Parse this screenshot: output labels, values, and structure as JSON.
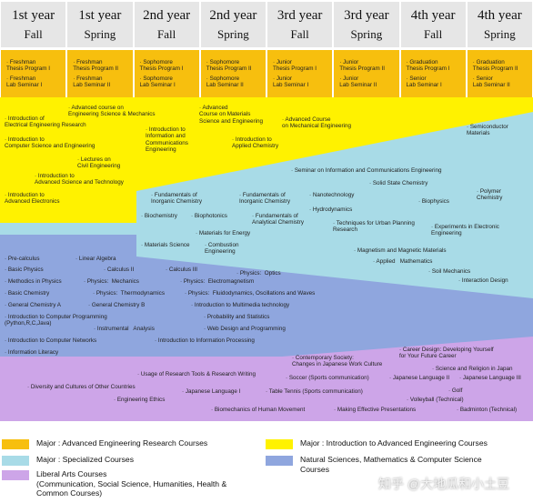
{
  "headers": [
    {
      "year": "1st year",
      "term": "Fall"
    },
    {
      "year": "1st year",
      "term": "Spring"
    },
    {
      "year": "2nd year",
      "term": "Fall"
    },
    {
      "year": "2nd year",
      "term": "Spring"
    },
    {
      "year": "3rd year",
      "term": "Fall"
    },
    {
      "year": "3rd year",
      "term": "Spring"
    },
    {
      "year": "4th year",
      "term": "Fall"
    },
    {
      "year": "4th year",
      "term": "Spring"
    }
  ],
  "thesis_cells": [
    [
      "· Freshman\nThesis Program I",
      "· Freshman\nLab Seminar I"
    ],
    [
      "· Freshman\nThesis Program II",
      "· Freshman\nLab Seminar II"
    ],
    [
      "· Sophomore\nThesis Program I",
      "· Sophomore\nLab Seminar I"
    ],
    [
      "· Sophomore\nThesis Program II",
      "· Sophomore\nLab Seminar II"
    ],
    [
      "· Junior\nThesis Program I",
      "· Junior\nLab Seminar I"
    ],
    [
      "· Junior\nThesis Program II",
      "· Junior\nLab Seminar II"
    ],
    [
      "· Graduation\nThesis Program I",
      "· Senior\nLab Seminar I"
    ],
    [
      "· Graduation\nThesis Program II",
      "· Senior\nLab Seminar II"
    ]
  ],
  "intro_major_courses": [
    "· Introduction of\nElectrical Engineering Research",
    "· Advanced course on\nEngineering Science & Mechanics",
    "· Introduction to\nComputer Science and Engineering",
    "· Introduction to\nInformation and\nCommunications\nEngineering",
    "· Advanced\nCourse on Materials\nScience and Engineering",
    "· Advanced Course\non Mechanical Engineering",
    "· Introduction to\nApplied Chemistry",
    "· Lectures on\nCivil Engineering",
    "· Introduction to\nAdvanced Science and Technology",
    "· Introduction to\nAdvanced Electronics"
  ],
  "specialized_courses": [
    "· Semiconductor\nMaterials",
    "· Seminar on Information and Communications Engineering",
    "· Solid State Chemistry",
    "· Fundamentals of\nInorganic Chemistry",
    "· Fundamentals of\nInorganic Chemistry",
    "· Nanotechnology",
    "· Polymer\nChemistry",
    "· Biophysics",
    "· Hydrodynamics",
    "· Biochemistry",
    "· Biophotonics",
    "· Fundamentals of\nAnalytical Chemistry",
    "· Techniques for Urban Planning\nResearch",
    "· Experiments in Electronic\nEngineering",
    "· Materials for Energy",
    "· Materials Science",
    "· Combustion\nEngineering",
    "· Magnetism and Magnetic Materials",
    "· Applied   Mathematics",
    "· Soil Mechanics",
    "· Interaction Design"
  ],
  "science_courses": [
    "· Pre-calculus",
    "· Linear Algebra",
    "· Basic Physics",
    "· Calculus II",
    "· Calculus III",
    "· Physics:  Optics",
    "· Methodics in Physics",
    "· Physics:  Mechanics",
    "· Physics:  Electromagnetism",
    "· Basic Chemistry",
    "· Physics:  Thermodynamics",
    "· Physics:  Fluidodynamics, Oscillations and Waves",
    "· General Chemistry A",
    "· General Chemistry B",
    "· Introduction to Multimedia technology",
    "· Introduction to Computer Programming\n(Python,R,C,Java)",
    "· Probability and Statistics",
    "· Instrumental   Analysis",
    "· Web Design and Programming",
    "· Introduction to Computer Networks",
    "· Introduction to Information Processing",
    "· Information Literacy"
  ],
  "liberal_courses": [
    "· Contemporary Society:\nChanges in Japanese Work Culture",
    "· Career Design: Developing Yourself\nfor Your Future Career",
    "· Science and Religion in Japan",
    "· Usage of Research Tools & Research Writing",
    "· Soccer (Sports communication)",
    "· Japanese Language II",
    "· Japanese Language III",
    "· Diversity and Cultures of Other Countries",
    "· Japanese Language I",
    "· Table Tennis (Sports communication)",
    "· Golf",
    "· Engineering Ethics",
    "· Volleyball (Technical)",
    "· Biomechanics of Human Movement",
    "· Making Effective Presentations",
    "· Badminton (Technical)"
  ],
  "legend": [
    {
      "label": "Major : Advanced Engineering Research Courses",
      "color": "#f7bf0e"
    },
    {
      "label": "Major : Introduction to Advanced Engineering Courses",
      "color": "#fff200"
    },
    {
      "label": "Major : Specialized Courses",
      "color": "#a8dbe7"
    },
    {
      "label": "Natural Sciences, Mathematics & Computer Science\nCourses",
      "color": "#8fa6de"
    },
    {
      "label": "Liberal Arts Courses\n(Communication, Social Science, Humanities, Health &\nCommon Courses)",
      "color": "#cda5e8"
    }
  ],
  "watermark": "知乎 @大地瓜和小土豆",
  "colors": {
    "header_bg": "#e6e6e6",
    "research": "#f7bf0e",
    "intro": "#fff200",
    "specialized": "#a8dbe7",
    "science": "#8fa6de",
    "liberal": "#cda5e8"
  }
}
